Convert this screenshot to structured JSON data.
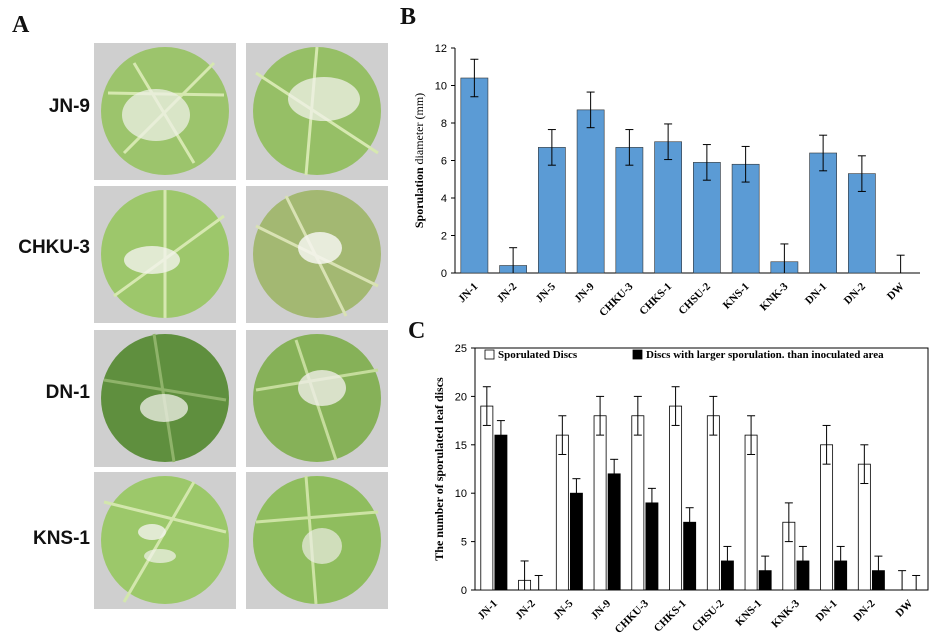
{
  "panels": {
    "a_letter": "A",
    "b_letter": "B",
    "c_letter": "C"
  },
  "photos": {
    "rows": [
      {
        "label": "JN-9"
      },
      {
        "label": "CHKU-3"
      },
      {
        "label": "DN-1"
      },
      {
        "label": "KNS-1"
      }
    ],
    "colors": {
      "leaf": "#8ab960",
      "leaf_dark": "#5f8f3e",
      "vein": "#cfe3a8",
      "spore": "#f2f2ee",
      "background": "#cfcfcf"
    }
  },
  "chart_data": [
    {
      "type": "bar",
      "panel": "B",
      "categories": [
        "JN-1",
        "JN-2",
        "JN-5",
        "JN-9",
        "CHKU-3",
        "CHKS-1",
        "CHSU-2",
        "KNS-1",
        "KNK-3",
        "DN-1",
        "DN-2",
        "DW"
      ],
      "series": [
        {
          "values": [
            10.4,
            0.4,
            6.7,
            8.7,
            6.7,
            7.0,
            5.9,
            5.8,
            0.6,
            6.4,
            5.3,
            0.0
          ],
          "errors": [
            1.0,
            0.95,
            0.95,
            0.95,
            0.95,
            0.95,
            0.95,
            0.95,
            0.95,
            0.95,
            0.95,
            0.95
          ]
        }
      ],
      "ylabel_bold": "Sporulation",
      "ylabel_rest": " diameter (mm)",
      "ylim": [
        0,
        12
      ],
      "yticks": [
        0,
        2,
        4,
        6,
        8,
        10,
        12
      ],
      "bar_color": "#5b9bd5",
      "grid": false
    },
    {
      "type": "bar",
      "panel": "C",
      "categories": [
        "JN-1",
        "JN-2",
        "JN-5",
        "JN-9",
        "CHKU-3",
        "CHKS-1",
        "CHSU-2",
        "KNS-1",
        "KNK-3",
        "DN-1",
        "DN-2",
        "DW"
      ],
      "series": [
        {
          "name": "Sporulated Discs",
          "color": "#ffffff",
          "values": [
            19,
            1,
            16,
            18,
            18,
            19,
            18,
            16,
            7,
            15,
            13,
            0
          ],
          "errors": [
            2,
            2,
            2,
            2,
            2,
            2,
            2,
            2,
            2,
            2,
            2,
            2
          ]
        },
        {
          "name": "Discs with larger sporulation. than inoculated area",
          "color": "#000000",
          "values": [
            16,
            0,
            10,
            12,
            9,
            7,
            3,
            2,
            3,
            3,
            2,
            0
          ],
          "errors": [
            1.5,
            1.5,
            1.5,
            1.5,
            1.5,
            1.5,
            1.5,
            1.5,
            1.5,
            1.5,
            1.5,
            1.5
          ]
        }
      ],
      "ylabel": "The number of sporulated leaf discs",
      "ylim": [
        0,
        25
      ],
      "yticks": [
        0,
        5,
        10,
        15,
        20,
        25
      ],
      "legend": "top",
      "grid": false
    }
  ]
}
